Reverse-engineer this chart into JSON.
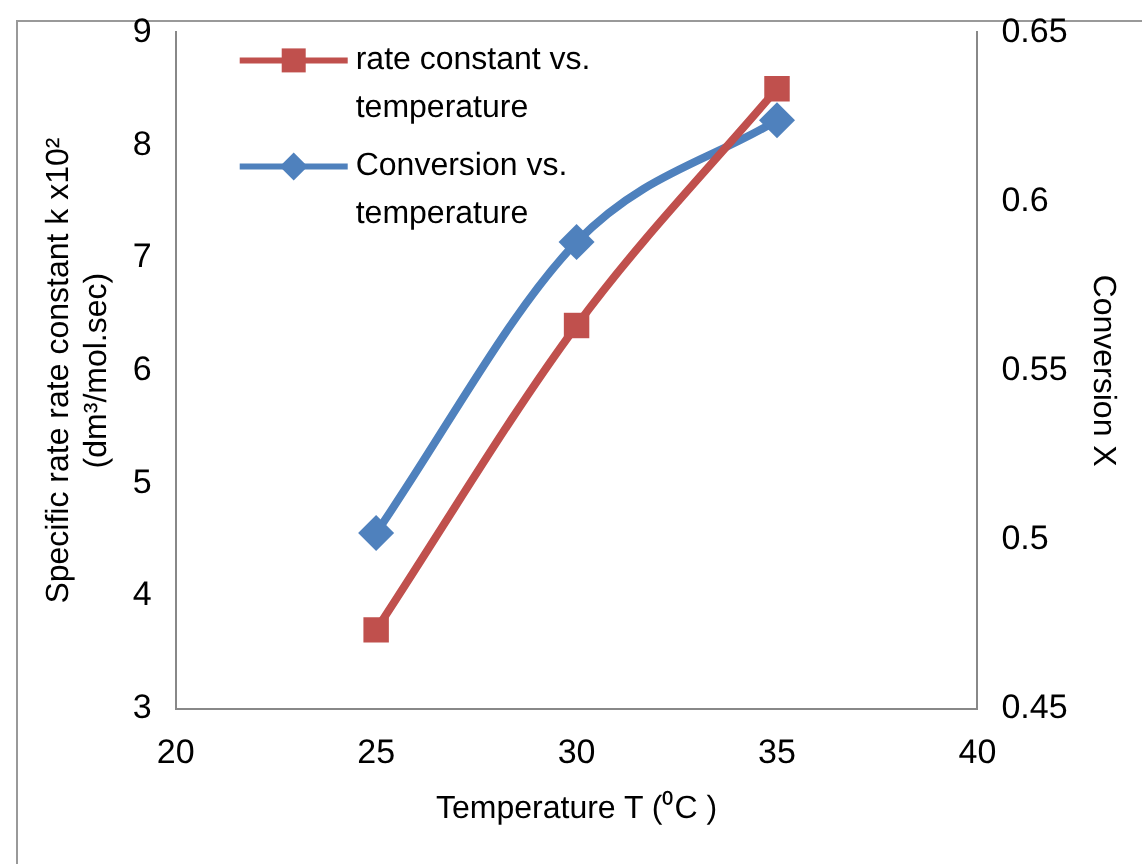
{
  "chart_data": {
    "type": "line",
    "xlabel": "Temperature T (⁰C )",
    "ylabel": "Specific rate rate constant k x10²\n(dm³/mol.sec)",
    "y2label": "Conversion X",
    "xlim": [
      20,
      40
    ],
    "xticks": [
      20,
      25,
      30,
      35,
      40
    ],
    "ylim": [
      3,
      9
    ],
    "yticks": [
      3,
      4,
      5,
      6,
      7,
      8,
      9
    ],
    "y2lim": [
      0.45,
      0.65
    ],
    "y2ticks": [
      0.45,
      0.5,
      0.55,
      0.6,
      0.65
    ],
    "grid": false,
    "legend": "top left",
    "line_style": "solid",
    "series": [
      {
        "name": "rate constant vs. temperature",
        "color": "#c0504d",
        "marker": "square",
        "x": [
          25,
          30,
          35
        ],
        "values": [
          3.7,
          6.4,
          8.5
        ]
      },
      {
        "name": "Conversion vs. temperature",
        "color": "#4f81bd",
        "marker": "diamond",
        "axis": "y2",
        "x": [
          25,
          30,
          35
        ],
        "values": [
          0.502,
          0.588,
          0.624
        ]
      }
    ]
  }
}
